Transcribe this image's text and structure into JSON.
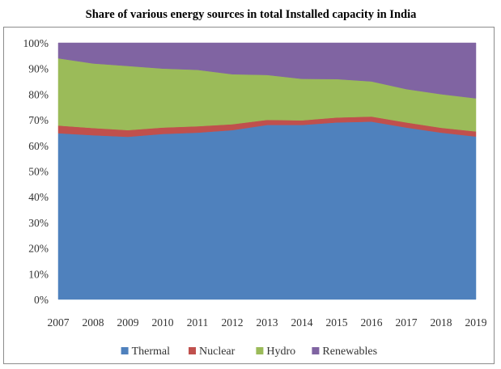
{
  "chart_data": {
    "type": "area",
    "stacked": true,
    "title": "Share of various energy sources in total Installed capacity in India",
    "xlabel": "",
    "ylabel": "",
    "categories": [
      "2007",
      "2008",
      "2009",
      "2010",
      "2011",
      "2012",
      "2013",
      "2014",
      "2015",
      "2016",
      "2017",
      "2018",
      "2019"
    ],
    "ylim": [
      0,
      100
    ],
    "yticks": [
      "0%",
      "10%",
      "20%",
      "30%",
      "40%",
      "50%",
      "60%",
      "70%",
      "80%",
      "90%",
      "100%"
    ],
    "grid": false,
    "legend_position": "bottom",
    "series": [
      {
        "name": "Thermal",
        "color": "#4f81bd",
        "values": [
          64.8,
          64.0,
          63.4,
          64.5,
          65.0,
          66.0,
          68.0,
          68.0,
          69.0,
          69.3,
          67.0,
          65.0,
          63.5
        ]
      },
      {
        "name": "Nuclear",
        "color": "#c0504d",
        "values": [
          3.0,
          2.8,
          2.6,
          2.5,
          2.5,
          2.3,
          2.0,
          1.8,
          1.9,
          2.0,
          2.0,
          1.9,
          2.0
        ]
      },
      {
        "name": "Hydro",
        "color": "#9bbb59",
        "values": [
          26.2,
          25.2,
          25.0,
          23.0,
          22.0,
          19.5,
          17.5,
          16.2,
          15.0,
          13.7,
          13.0,
          13.1,
          12.9
        ]
      },
      {
        "name": "Renewables",
        "color": "#8064a2",
        "values": [
          6.0,
          8.0,
          9.0,
          10.0,
          10.5,
          12.2,
          12.5,
          14.0,
          14.1,
          15.0,
          18.0,
          20.0,
          21.6
        ]
      }
    ]
  }
}
